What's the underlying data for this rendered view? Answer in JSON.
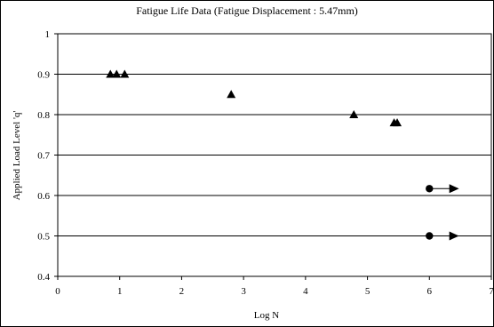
{
  "chart_data": {
    "type": "scatter",
    "title": "Fatigue Life Data (Fatigue Displacement : 5.47mm)",
    "xlabel": "Log N",
    "ylabel": "Applied Load Level 'q'",
    "xlim": [
      0,
      7
    ],
    "ylim": [
      0.4,
      1.0
    ],
    "x_ticks": [
      "0",
      "1",
      "2",
      "3",
      "4",
      "5",
      "6",
      "7"
    ],
    "y_ticks": [
      "0.4",
      "0.5",
      "0.6",
      "0.7",
      "0.8",
      "0.9",
      "1"
    ],
    "x_tick_values": [
      0,
      1,
      2,
      3,
      4,
      5,
      6,
      7
    ],
    "y_tick_values": [
      0.4,
      0.5,
      0.6,
      0.7,
      0.8,
      0.9,
      1.0
    ],
    "grid": "horizontal",
    "series": [
      {
        "marker": "triangle-up",
        "color": "#000000",
        "points": [
          {
            "x": 0.85,
            "y": 0.9
          },
          {
            "x": 0.95,
            "y": 0.9
          },
          {
            "x": 1.08,
            "y": 0.9
          },
          {
            "x": 2.8,
            "y": 0.85
          },
          {
            "x": 4.78,
            "y": 0.8
          },
          {
            "x": 5.43,
            "y": 0.78
          },
          {
            "x": 5.48,
            "y": 0.78
          }
        ]
      },
      {
        "marker": "circle",
        "color": "#000000",
        "points": [
          {
            "x": 6.0,
            "y": 0.617
          },
          {
            "x": 6.0,
            "y": 0.5
          }
        ]
      }
    ],
    "runouts": [
      {
        "from_x": 6.0,
        "to_x": 6.45,
        "y": 0.617
      },
      {
        "from_x": 6.0,
        "to_x": 6.45,
        "y": 0.5
      }
    ]
  }
}
